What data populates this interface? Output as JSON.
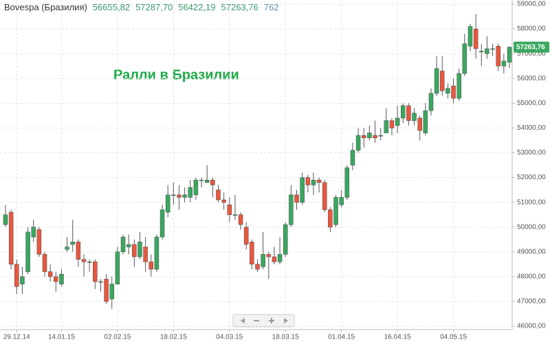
{
  "chart_data": {
    "type": "candlestick",
    "title": "Ралли в Бразилии",
    "last_values": [
      "56655,82",
      "57287,70",
      "56422,19",
      "57263,76",
      "762"
    ],
    "last_price": {
      "value": 57263.76,
      "label": "57263,76",
      "color": "#3aa860"
    },
    "categories": [
      null,
      null,
      "29.12.14",
      null,
      null,
      null,
      null,
      null,
      null,
      null,
      "14.01.15",
      null,
      null,
      null,
      null,
      null,
      null,
      null,
      null,
      null,
      "02.02.15",
      null,
      null,
      null,
      null,
      null,
      null,
      null,
      null,
      null,
      "18.02.15",
      null,
      null,
      null,
      null,
      null,
      null,
      null,
      null,
      null,
      "04.03.15",
      null,
      null,
      null,
      null,
      null,
      null,
      null,
      null,
      null,
      "18.03.15",
      null,
      null,
      null,
      null,
      null,
      null,
      null,
      null,
      null,
      "01.04.15",
      null,
      null,
      null,
      null,
      null,
      null,
      null,
      null,
      null,
      "16.04.15",
      null,
      null,
      null,
      null,
      null,
      null,
      null,
      null,
      null,
      "04.05.15",
      null,
      null,
      null,
      null,
      null,
      null,
      null,
      null,
      null,
      null
    ],
    "series": [
      {
        "name": "Bovespa (Бразилия)",
        "up_color": "#3aa860",
        "down_color": "#e9573f",
        "open": [
          50100,
          50600,
          48500,
          47700,
          48200,
          49600,
          49900,
          48900,
          48200,
          48000,
          47700,
          49100,
          49300,
          49400,
          48700,
          48600,
          48600,
          47800,
          47900,
          47100,
          47700,
          49000,
          49200,
          49300,
          48800,
          49200,
          48600,
          48300,
          49600,
          50600,
          51300,
          51300,
          51200,
          51200,
          51300,
          51900,
          51800,
          51900,
          51500,
          51100,
          50900,
          50500,
          50500,
          50000,
          49400,
          48500,
          48400,
          48900,
          48800,
          48600,
          48900,
          50100,
          51300,
          51000,
          52000,
          51700,
          51900,
          51800,
          50700,
          50100,
          50900,
          51200,
          52500,
          53100,
          53700,
          53600,
          53700,
          53700,
          53800,
          54300,
          54100,
          54400,
          54900,
          54300,
          54400,
          53800,
          54700,
          55400,
          56300,
          55400,
          55700,
          55200,
          56200,
          57300,
          58000,
          57100,
          57000,
          57200,
          57300,
          56500,
          56655.82
        ],
        "high": [
          50900,
          50700,
          48700,
          48400,
          50000,
          50300,
          50000,
          49000,
          48500,
          48200,
          48300,
          49600,
          50300,
          49500,
          48900,
          48700,
          48700,
          47900,
          48100,
          48000,
          49200,
          49700,
          49700,
          49500,
          49800,
          49600,
          48900,
          49700,
          50900,
          51700,
          51800,
          51700,
          51600,
          51900,
          52000,
          52000,
          52500,
          52000,
          51700,
          51400,
          51200,
          51300,
          50600,
          50200,
          49500,
          48700,
          49800,
          49000,
          49200,
          49600,
          50200,
          51700,
          51500,
          52200,
          52100,
          52200,
          52000,
          51900,
          50800,
          51300,
          51500,
          52500,
          53400,
          54000,
          54000,
          54100,
          54300,
          54000,
          54800,
          54400,
          54900,
          55000,
          55000,
          54800,
          54500,
          55000,
          55600,
          56900,
          56900,
          55800,
          56000,
          56400,
          57800,
          58200,
          58600,
          57400,
          57700,
          57400,
          57400,
          57000,
          57287.7
        ],
        "low": [
          50000,
          48300,
          47300,
          47300,
          48100,
          49400,
          48800,
          48000,
          47800,
          47400,
          47600,
          49000,
          49000,
          48400,
          48000,
          48200,
          47500,
          47400,
          46900,
          46700,
          47700,
          48900,
          48900,
          48400,
          48700,
          48200,
          48000,
          48200,
          49500,
          50400,
          50900,
          50700,
          51000,
          51000,
          51100,
          51600,
          51800,
          51200,
          51000,
          50700,
          50200,
          50300,
          49900,
          49100,
          48300,
          48200,
          48300,
          47900,
          48500,
          48500,
          48800,
          50000,
          50700,
          50900,
          51400,
          51300,
          51400,
          50600,
          49800,
          50000,
          50800,
          51100,
          52300,
          53000,
          53200,
          53500,
          53400,
          53500,
          53800,
          53700,
          53800,
          54200,
          54100,
          54100,
          53500,
          53700,
          54500,
          55300,
          55300,
          55200,
          55000,
          55100,
          56100,
          57100,
          56800,
          56500,
          56800,
          56900,
          56300,
          56200,
          56422.19
        ],
        "close": [
          50500,
          48500,
          47600,
          48000,
          49800,
          50000,
          48900,
          48200,
          48000,
          47800,
          48100,
          49200,
          49400,
          48700,
          48600,
          48600,
          47800,
          47800,
          47000,
          47700,
          49000,
          49600,
          49300,
          48800,
          49400,
          48600,
          48300,
          49600,
          50700,
          51300,
          51300,
          51200,
          51300,
          51600,
          51900,
          51900,
          51900,
          51700,
          51100,
          51000,
          50500,
          50500,
          50100,
          49300,
          48500,
          48300,
          48900,
          48800,
          48600,
          48900,
          50100,
          51300,
          51000,
          52000,
          51700,
          51900,
          51800,
          50700,
          50000,
          51200,
          51200,
          52400,
          53100,
          53700,
          53600,
          53800,
          53600,
          53700,
          54300,
          54000,
          54400,
          54900,
          54300,
          54600,
          53900,
          54700,
          55400,
          56400,
          55500,
          55600,
          55200,
          56200,
          57400,
          58100,
          57200,
          57100,
          57200,
          57200,
          56500,
          56700,
          57263.76
        ]
      }
    ],
    "ylim": [
      46000,
      59000
    ],
    "yticks": [
      {
        "value": 46000,
        "label": "46000,00"
      },
      {
        "value": 47000,
        "label": "47000,00"
      },
      {
        "value": 48000,
        "label": "48000,00"
      },
      {
        "value": 49000,
        "label": "49000,00"
      },
      {
        "value": 50000,
        "label": "50000,00"
      },
      {
        "value": 51000,
        "label": "51000,00"
      },
      {
        "value": 52000,
        "label": "52000,00"
      },
      {
        "value": 53000,
        "label": "53000,00"
      },
      {
        "value": 54000,
        "label": "54000,00"
      },
      {
        "value": 55000,
        "label": "55000,00"
      },
      {
        "value": 56000,
        "label": "56000,00"
      },
      {
        "value": 57000,
        "label": "57000,00"
      },
      {
        "value": 58000,
        "label": "58000,00"
      },
      {
        "value": 59000,
        "label": "59000,00"
      }
    ],
    "grid": true
  }
}
